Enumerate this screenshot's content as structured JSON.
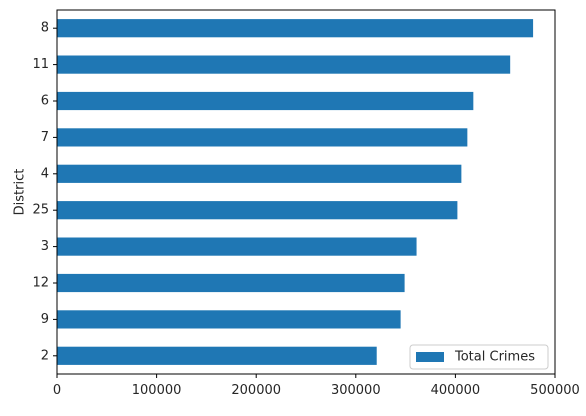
{
  "chart_data": {
    "type": "bar",
    "orientation": "horizontal",
    "categories": [
      "2",
      "9",
      "12",
      "3",
      "25",
      "4",
      "7",
      "6",
      "11",
      "8"
    ],
    "series": [
      {
        "name": "Total Crimes",
        "values": [
          321000,
          345000,
          349000,
          361000,
          402000,
          406000,
          412000,
          418000,
          455000,
          478000
        ],
        "color": "#1f77b4"
      }
    ],
    "title": "",
    "xlabel": "",
    "ylabel": "District",
    "xlim": [
      0,
      500000
    ],
    "xticks": [
      0,
      100000,
      200000,
      300000,
      400000,
      500000
    ],
    "xtick_labels": [
      "0",
      "100000",
      "200000",
      "300000",
      "400000",
      "500000"
    ],
    "grid": false,
    "legend_position": "lower-right"
  }
}
